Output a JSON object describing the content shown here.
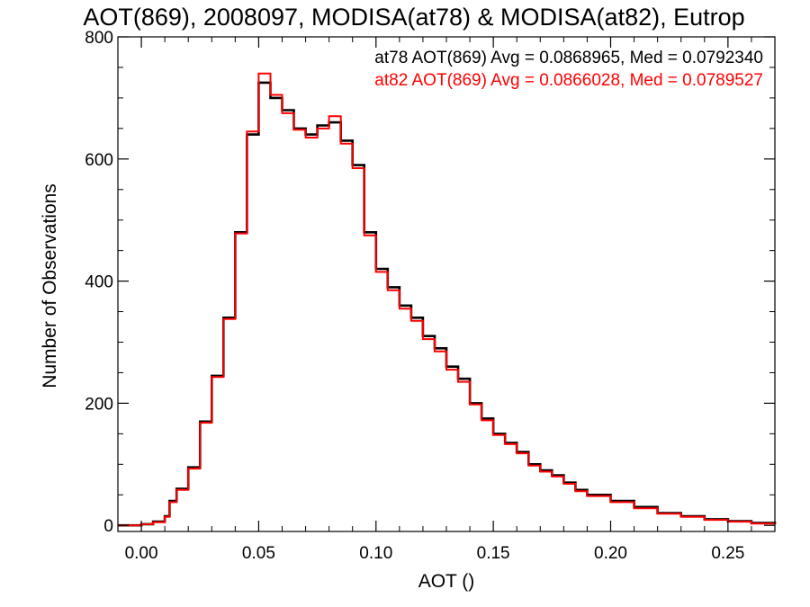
{
  "chart_data": {
    "type": "line",
    "title": "AOT(869), 2008097, MODISA(at78) & MODISA(at82), Eutrop",
    "xlabel": "AOT ()",
    "ylabel": "Number of Observations",
    "xlim": [
      -0.01,
      0.27
    ],
    "ylim": [
      -10,
      800
    ],
    "xticks": [
      "0.00",
      "0.05",
      "0.10",
      "0.15",
      "0.20",
      "0.25"
    ],
    "yticks": [
      "0",
      "200",
      "400",
      "600",
      "800"
    ],
    "grid": false,
    "annotations": [
      {
        "text": "at78 AOT(869) Avg = 0.0868965, Med = 0.0792340",
        "color": "#000000"
      },
      {
        "text": "at82 AOT(869) Avg = 0.0866028, Med = 0.0789527",
        "color": "#ff0000"
      }
    ],
    "series": [
      {
        "color": "#000000",
        "x": [
          -0.01,
          0.0,
          0.005,
          0.01,
          0.012,
          0.015,
          0.02,
          0.025,
          0.03,
          0.035,
          0.04,
          0.045,
          0.05,
          0.055,
          0.06,
          0.065,
          0.07,
          0.075,
          0.08,
          0.085,
          0.09,
          0.095,
          0.1,
          0.105,
          0.11,
          0.115,
          0.12,
          0.125,
          0.13,
          0.135,
          0.14,
          0.145,
          0.15,
          0.155,
          0.16,
          0.165,
          0.17,
          0.175,
          0.18,
          0.185,
          0.19,
          0.2,
          0.21,
          0.22,
          0.23,
          0.24,
          0.25,
          0.26,
          0.27
        ],
        "y": [
          0,
          2,
          6,
          15,
          40,
          60,
          95,
          170,
          245,
          340,
          480,
          640,
          725,
          700,
          680,
          650,
          640,
          655,
          660,
          630,
          590,
          480,
          420,
          390,
          360,
          340,
          310,
          290,
          260,
          240,
          200,
          175,
          150,
          135,
          120,
          100,
          90,
          82,
          70,
          58,
          50,
          40,
          30,
          20,
          15,
          10,
          7,
          4,
          2
        ]
      },
      {
        "color": "#ff0000",
        "x": [
          -0.01,
          0.0,
          0.005,
          0.01,
          0.012,
          0.015,
          0.02,
          0.025,
          0.03,
          0.035,
          0.04,
          0.045,
          0.05,
          0.055,
          0.06,
          0.065,
          0.07,
          0.075,
          0.08,
          0.085,
          0.09,
          0.095,
          0.1,
          0.105,
          0.11,
          0.115,
          0.12,
          0.125,
          0.13,
          0.135,
          0.14,
          0.145,
          0.15,
          0.155,
          0.16,
          0.165,
          0.17,
          0.175,
          0.18,
          0.185,
          0.19,
          0.2,
          0.21,
          0.22,
          0.23,
          0.24,
          0.25,
          0.26,
          0.27
        ],
        "y": [
          0,
          2,
          5,
          14,
          38,
          58,
          93,
          168,
          243,
          338,
          478,
          645,
          740,
          705,
          675,
          648,
          635,
          650,
          670,
          625,
          585,
          475,
          415,
          385,
          355,
          335,
          305,
          285,
          255,
          235,
          198,
          172,
          148,
          133,
          118,
          98,
          88,
          80,
          68,
          56,
          48,
          38,
          28,
          19,
          14,
          9,
          6,
          3,
          2
        ]
      }
    ]
  }
}
